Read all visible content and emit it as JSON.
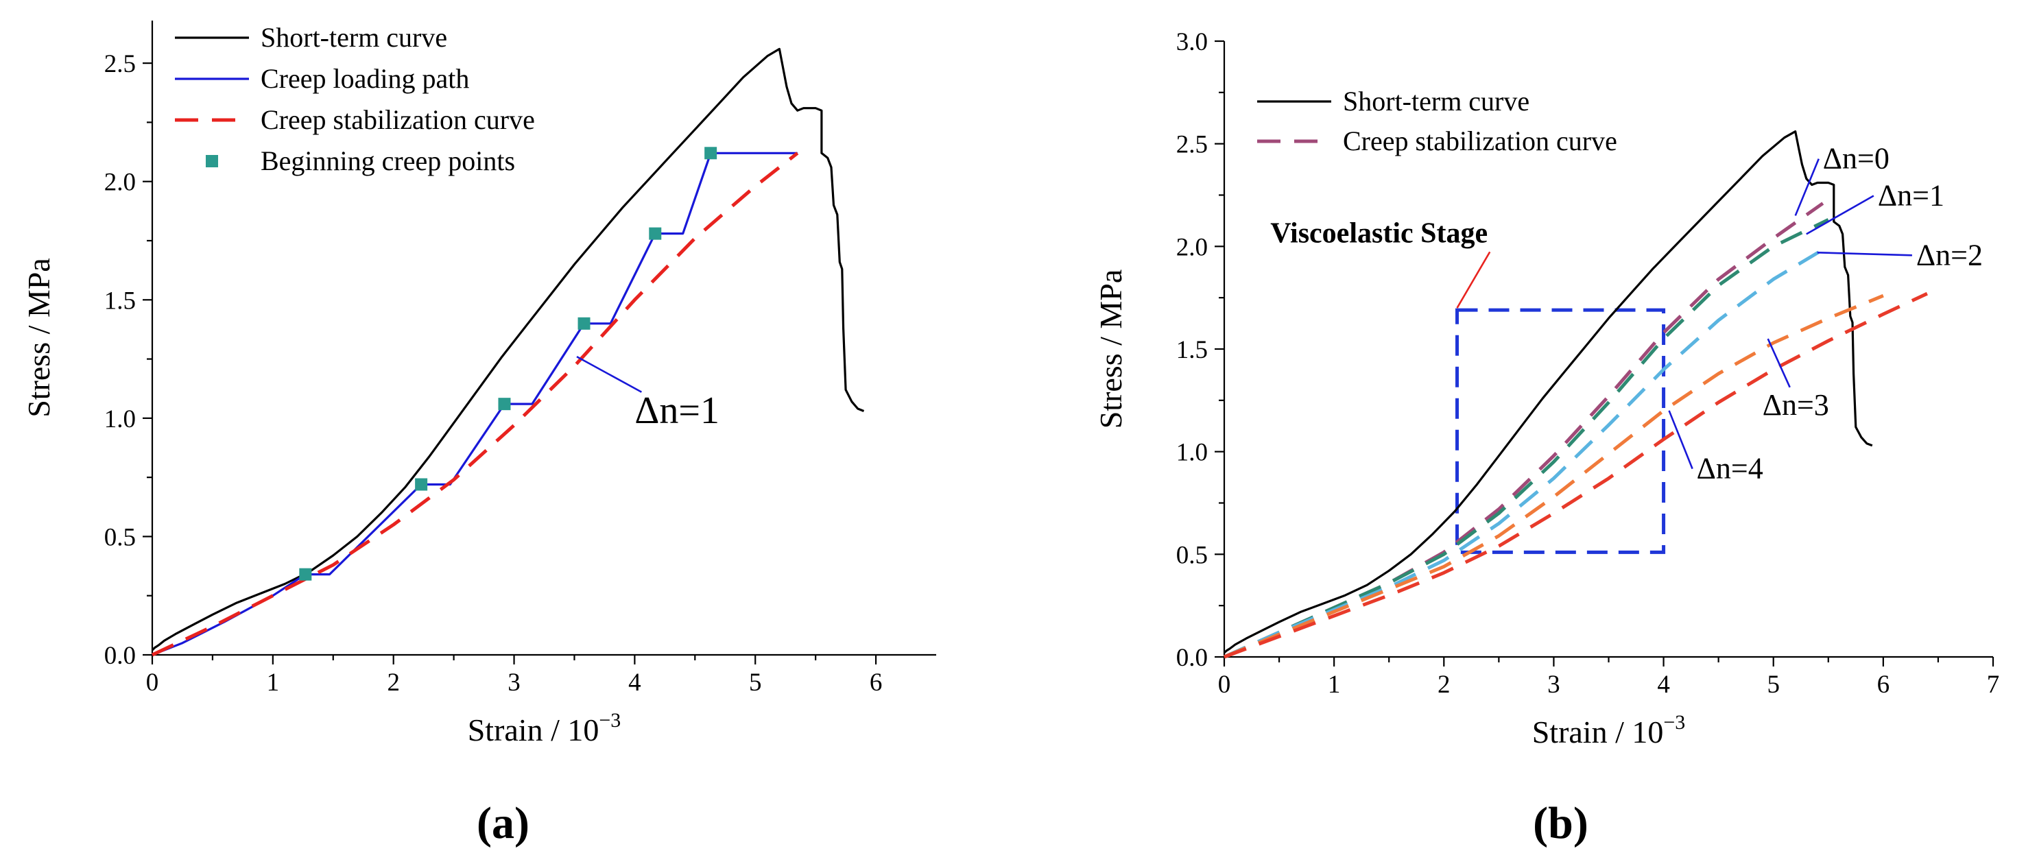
{
  "chart_data": [
    {
      "type": "line",
      "panel_label": "(a)",
      "xlabel": "Strain / 10",
      "xlabel_sup": "−3",
      "ylabel": "Stress / MPa",
      "xlim": [
        0,
        6.5
      ],
      "ylim": [
        0,
        2.68
      ],
      "xticks": [
        0,
        1,
        2,
        3,
        4,
        5,
        6
      ],
      "xtick_labels": [
        "0",
        "1",
        "2",
        "3",
        "4",
        "5",
        "6"
      ],
      "yticks": [
        0,
        0.5,
        1.0,
        1.5,
        2.0,
        2.5
      ],
      "ytick_labels": [
        "0.0",
        "0.5",
        "1.0",
        "1.5",
        "2.0",
        "2.5"
      ],
      "grid": false,
      "legend_placement": "top-left",
      "series": [
        {
          "name": "Short-term curve",
          "style": "solid",
          "color": "#000000",
          "x": [
            0,
            0.02,
            0.05,
            0.1,
            0.2,
            0.35,
            0.5,
            0.7,
            0.9,
            1.1,
            1.3,
            1.5,
            1.7,
            1.9,
            2.1,
            2.3,
            2.5,
            2.7,
            2.9,
            3.1,
            3.3,
            3.5,
            3.7,
            3.9,
            4.1,
            4.3,
            4.5,
            4.7,
            4.9,
            5.1,
            5.2,
            5.23,
            5.26,
            5.3,
            5.35,
            5.4,
            5.45,
            5.5,
            5.55,
            5.55,
            5.6,
            5.63,
            5.65,
            5.68,
            5.7,
            5.72,
            5.73,
            5.75,
            5.8,
            5.85,
            5.9
          ],
          "y": [
            0.02,
            0.03,
            0.04,
            0.06,
            0.09,
            0.13,
            0.17,
            0.22,
            0.26,
            0.3,
            0.35,
            0.42,
            0.5,
            0.6,
            0.71,
            0.84,
            0.98,
            1.12,
            1.26,
            1.39,
            1.52,
            1.65,
            1.77,
            1.89,
            2.0,
            2.11,
            2.22,
            2.33,
            2.44,
            2.53,
            2.56,
            2.48,
            2.4,
            2.33,
            2.3,
            2.31,
            2.31,
            2.31,
            2.3,
            2.12,
            2.1,
            2.06,
            1.9,
            1.86,
            1.66,
            1.63,
            1.38,
            1.12,
            1.07,
            1.04,
            1.03
          ]
        },
        {
          "name": "Creep loading path",
          "style": "solid",
          "color": "#1818d8",
          "x": [
            0,
            0.25,
            0.6,
            1.0,
            1.27,
            1.47,
            2.23,
            2.47,
            2.92,
            3.15,
            3.58,
            3.8,
            4.17,
            4.4,
            4.63,
            5.35
          ],
          "y": [
            0,
            0.05,
            0.14,
            0.25,
            0.34,
            0.34,
            0.72,
            0.72,
            1.06,
            1.06,
            1.4,
            1.4,
            1.78,
            1.78,
            2.12,
            2.12
          ]
        },
        {
          "name": "Creep stabilization curve",
          "style": "dashed",
          "color": "#e8231f",
          "x": [
            0,
            0.5,
            1.0,
            1.5,
            2.0,
            2.5,
            3.0,
            3.5,
            4.0,
            4.5,
            5.0,
            5.35
          ],
          "y": [
            0,
            0.12,
            0.25,
            0.38,
            0.55,
            0.74,
            0.97,
            1.22,
            1.5,
            1.76,
            1.98,
            2.12
          ]
        },
        {
          "name": "Beginning creep points",
          "style": "markers",
          "color": "#2a9a8e",
          "x": [
            1.27,
            2.23,
            2.92,
            3.58,
            4.17,
            4.63
          ],
          "y": [
            0.34,
            0.72,
            1.06,
            1.4,
            1.78,
            2.12
          ]
        }
      ],
      "annotations": [
        {
          "text": "Δn=1",
          "x": 4.0,
          "y": 0.98,
          "pointer_to": [
            3.52,
            1.26
          ]
        }
      ]
    },
    {
      "type": "line",
      "panel_label": "(b)",
      "xlabel": "Strain / 10",
      "xlabel_sup": "−3",
      "ylabel": "Stress / MPa",
      "xlim": [
        0,
        7
      ],
      "ylim": [
        0,
        3.0
      ],
      "xticks": [
        0,
        1,
        2,
        3,
        4,
        5,
        6,
        7
      ],
      "xtick_labels": [
        "0",
        "1",
        "2",
        "3",
        "4",
        "5",
        "6",
        "7"
      ],
      "yticks": [
        0,
        0.5,
        1.0,
        1.5,
        2.0,
        2.5,
        3.0
      ],
      "ytick_labels": [
        "0.0",
        "0.5",
        "1.0",
        "1.5",
        "2.0",
        "2.5",
        "3.0"
      ],
      "grid": false,
      "legend_placement": "top-left",
      "legend": [
        {
          "label": "Short-term curve",
          "style": "solid",
          "color": "#000000"
        },
        {
          "label": "Creep stabilization curve",
          "style": "dashed",
          "color": "#a04a78"
        }
      ],
      "series": [
        {
          "name": "Short-term curve",
          "style": "solid",
          "color": "#000000",
          "x": [
            0,
            0.02,
            0.05,
            0.1,
            0.2,
            0.35,
            0.5,
            0.7,
            0.9,
            1.1,
            1.3,
            1.5,
            1.7,
            1.9,
            2.1,
            2.3,
            2.5,
            2.7,
            2.9,
            3.1,
            3.3,
            3.5,
            3.7,
            3.9,
            4.1,
            4.3,
            4.5,
            4.7,
            4.9,
            5.1,
            5.2,
            5.23,
            5.26,
            5.3,
            5.35,
            5.4,
            5.45,
            5.5,
            5.55,
            5.55,
            5.6,
            5.63,
            5.65,
            5.68,
            5.7,
            5.72,
            5.73,
            5.75,
            5.8,
            5.85,
            5.9
          ],
          "y": [
            0.02,
            0.03,
            0.04,
            0.06,
            0.09,
            0.13,
            0.17,
            0.22,
            0.26,
            0.3,
            0.35,
            0.42,
            0.5,
            0.6,
            0.71,
            0.84,
            0.98,
            1.12,
            1.26,
            1.39,
            1.52,
            1.65,
            1.77,
            1.89,
            2.0,
            2.11,
            2.22,
            2.33,
            2.44,
            2.53,
            2.56,
            2.48,
            2.4,
            2.33,
            2.3,
            2.31,
            2.31,
            2.31,
            2.3,
            2.12,
            2.1,
            2.06,
            1.9,
            1.86,
            1.66,
            1.63,
            1.38,
            1.12,
            1.07,
            1.04,
            1.03
          ]
        },
        {
          "style": "dashed",
          "color": "#a04a78",
          "x": [
            0,
            0.5,
            1.0,
            1.5,
            2.0,
            2.5,
            3.0,
            3.5,
            4.0,
            4.5,
            5.0,
            5.45
          ],
          "y": [
            0,
            0.12,
            0.24,
            0.36,
            0.51,
            0.72,
            0.98,
            1.27,
            1.58,
            1.84,
            2.04,
            2.21
          ]
        },
        {
          "style": "dashed",
          "color": "#2e8a72",
          "x": [
            0,
            0.5,
            1.0,
            1.5,
            2.0,
            2.5,
            3.0,
            3.5,
            4.0,
            4.5,
            5.0,
            5.5
          ],
          "y": [
            0,
            0.12,
            0.24,
            0.36,
            0.5,
            0.7,
            0.95,
            1.24,
            1.55,
            1.81,
            2.0,
            2.13
          ]
        },
        {
          "style": "dashed",
          "color": "#5ab4e0",
          "x": [
            0,
            0.5,
            1.0,
            1.5,
            2.0,
            2.5,
            3.0,
            3.5,
            4.0,
            4.5,
            5.0,
            5.5
          ],
          "y": [
            0,
            0.12,
            0.23,
            0.34,
            0.47,
            0.65,
            0.87,
            1.13,
            1.4,
            1.64,
            1.84,
            2.0
          ]
        },
        {
          "style": "dashed",
          "color": "#f07a3a",
          "x": [
            0,
            0.5,
            1.0,
            1.5,
            2.0,
            2.5,
            3.0,
            3.5,
            4.0,
            4.5,
            5.0,
            5.5,
            6.0
          ],
          "y": [
            0,
            0.11,
            0.22,
            0.33,
            0.44,
            0.59,
            0.78,
            0.99,
            1.2,
            1.38,
            1.53,
            1.65,
            1.76
          ]
        },
        {
          "style": "dashed",
          "color": "#e83a2a",
          "x": [
            0,
            0.5,
            1.0,
            1.5,
            2.0,
            2.5,
            3.0,
            3.5,
            4.0,
            4.5,
            5.0,
            5.5,
            6.0,
            6.4
          ],
          "y": [
            0,
            0.1,
            0.2,
            0.3,
            0.41,
            0.54,
            0.7,
            0.87,
            1.06,
            1.24,
            1.4,
            1.54,
            1.67,
            1.77
          ]
        }
      ],
      "annotations": [
        {
          "text": "Δn=0",
          "x": 5.45,
          "y": 2.38,
          "pointer_to": [
            5.2,
            2.15
          ]
        },
        {
          "text": "Δn=1",
          "x": 5.95,
          "y": 2.2,
          "pointer_to": [
            5.3,
            2.06
          ]
        },
        {
          "text": "Δn=2",
          "x": 6.3,
          "y": 1.91,
          "pointer_to": [
            5.4,
            1.97
          ]
        },
        {
          "text": "Δn=3",
          "x": 4.9,
          "y": 1.18,
          "pointer_to": [
            4.95,
            1.55
          ]
        },
        {
          "text": "Δn=4",
          "x": 4.3,
          "y": 0.87,
          "pointer_to": [
            4.05,
            1.2
          ]
        },
        {
          "text": "Viscoelastic Stage",
          "x": 0.42,
          "y": 2.02,
          "bold": true,
          "pointer_to": [
            2.12,
            1.7
          ]
        }
      ],
      "highlight_box": {
        "x0": 2.12,
        "x1": 4.0,
        "y0": 0.51,
        "y1": 1.69,
        "color": "#1f36d8",
        "style": "dashed"
      }
    }
  ]
}
